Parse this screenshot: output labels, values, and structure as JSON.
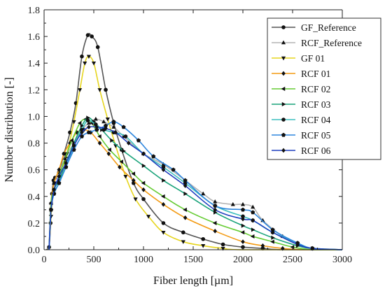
{
  "chart_data": {
    "type": "line",
    "xlabel": "Fiber length  [µm]",
    "ylabel": "Number distribution [-]",
    "xlim": [
      0,
      3000
    ],
    "ylim": [
      0,
      1.8
    ],
    "xticks": [
      "0",
      "500",
      "1000",
      "1500",
      "2000",
      "2500",
      "3000"
    ],
    "yticks": [
      "0.0",
      "0.2",
      "0.4",
      "0.6",
      "0.8",
      "1.0",
      "1.2",
      "1.4",
      "1.6",
      "1.8"
    ],
    "grid": false,
    "legend_position": "top-right",
    "series": [
      {
        "name": "GF_Reference",
        "color": "#555555",
        "marker": "circle",
        "points": [
          [
            20,
            0.0
          ],
          [
            50,
            0.02
          ],
          [
            65,
            0.2
          ],
          [
            80,
            0.42
          ],
          [
            95,
            0.52
          ],
          [
            110,
            0.54
          ],
          [
            150,
            0.58
          ],
          [
            200,
            0.72
          ],
          [
            260,
            0.88
          ],
          [
            320,
            1.1
          ],
          [
            380,
            1.45
          ],
          [
            440,
            1.61
          ],
          [
            480,
            1.6
          ],
          [
            540,
            1.52
          ],
          [
            620,
            1.2
          ],
          [
            700,
            0.95
          ],
          [
            780,
            0.75
          ],
          [
            900,
            0.5
          ],
          [
            1000,
            0.38
          ],
          [
            1200,
            0.2
          ],
          [
            1400,
            0.13
          ],
          [
            1600,
            0.08
          ],
          [
            1800,
            0.04
          ],
          [
            2000,
            0.02
          ],
          [
            2200,
            0.01
          ],
          [
            2400,
            0.0
          ],
          [
            3000,
            0.0
          ]
        ]
      },
      {
        "name": "RCF_Reference",
        "color": "#b3b3b3",
        "marker": "triangle-up",
        "points": [
          [
            50,
            0.0
          ],
          [
            70,
            0.35
          ],
          [
            100,
            0.5
          ],
          [
            150,
            0.58
          ],
          [
            220,
            0.7
          ],
          [
            300,
            0.8
          ],
          [
            380,
            0.9
          ],
          [
            450,
            0.95
          ],
          [
            520,
            0.98
          ],
          [
            600,
            0.96
          ],
          [
            700,
            0.92
          ],
          [
            800,
            0.85
          ],
          [
            1000,
            0.72
          ],
          [
            1200,
            0.64
          ],
          [
            1420,
            0.52
          ],
          [
            1600,
            0.42
          ],
          [
            1720,
            0.36
          ],
          [
            1900,
            0.34
          ],
          [
            2000,
            0.34
          ],
          [
            2100,
            0.32
          ],
          [
            2200,
            0.22
          ],
          [
            2400,
            0.1
          ],
          [
            2550,
            0.04
          ],
          [
            2700,
            0.01
          ],
          [
            3000,
            0.0
          ]
        ]
      },
      {
        "name": "GF 01",
        "color": "#e6d51e",
        "marker": "triangle-down",
        "points": [
          [
            50,
            0.0
          ],
          [
            70,
            0.25
          ],
          [
            90,
            0.42
          ],
          [
            120,
            0.5
          ],
          [
            170,
            0.55
          ],
          [
            230,
            0.72
          ],
          [
            300,
            0.96
          ],
          [
            360,
            1.2
          ],
          [
            410,
            1.4
          ],
          [
            450,
            1.45
          ],
          [
            500,
            1.4
          ],
          [
            560,
            1.2
          ],
          [
            640,
            0.98
          ],
          [
            720,
            0.78
          ],
          [
            820,
            0.55
          ],
          [
            920,
            0.38
          ],
          [
            1050,
            0.25
          ],
          [
            1200,
            0.13
          ],
          [
            1400,
            0.06
          ],
          [
            1600,
            0.03
          ],
          [
            1800,
            0.01
          ],
          [
            2000,
            0.0
          ],
          [
            3000,
            0.0
          ]
        ]
      },
      {
        "name": "RCF 01",
        "color": "#f39b14",
        "marker": "diamond",
        "points": [
          [
            50,
            0.0
          ],
          [
            70,
            0.35
          ],
          [
            100,
            0.5
          ],
          [
            150,
            0.6
          ],
          [
            200,
            0.72
          ],
          [
            260,
            0.8
          ],
          [
            330,
            0.88
          ],
          [
            400,
            0.9
          ],
          [
            470,
            0.88
          ],
          [
            560,
            0.8
          ],
          [
            650,
            0.72
          ],
          [
            760,
            0.62
          ],
          [
            900,
            0.52
          ],
          [
            1000,
            0.45
          ],
          [
            1200,
            0.34
          ],
          [
            1420,
            0.24
          ],
          [
            1720,
            0.14
          ],
          [
            2000,
            0.06
          ],
          [
            2200,
            0.03
          ],
          [
            2400,
            0.01
          ],
          [
            2600,
            0.0
          ],
          [
            3000,
            0.0
          ]
        ]
      },
      {
        "name": "RCF 02",
        "color": "#66cc33",
        "marker": "triangle-left",
        "points": [
          [
            50,
            0.0
          ],
          [
            70,
            0.35
          ],
          [
            100,
            0.45
          ],
          [
            150,
            0.55
          ],
          [
            210,
            0.68
          ],
          [
            280,
            0.82
          ],
          [
            360,
            0.95
          ],
          [
            420,
            0.98
          ],
          [
            480,
            0.95
          ],
          [
            560,
            0.85
          ],
          [
            660,
            0.75
          ],
          [
            780,
            0.66
          ],
          [
            900,
            0.57
          ],
          [
            1000,
            0.5
          ],
          [
            1200,
            0.4
          ],
          [
            1420,
            0.3
          ],
          [
            1720,
            0.2
          ],
          [
            2000,
            0.13
          ],
          [
            2100,
            0.1
          ],
          [
            2300,
            0.06
          ],
          [
            2500,
            0.02
          ],
          [
            2700,
            0.0
          ],
          [
            3000,
            0.0
          ]
        ]
      },
      {
        "name": "RCF 03",
        "color": "#1aa37a",
        "marker": "triangle-right",
        "points": [
          [
            50,
            0.0
          ],
          [
            70,
            0.3
          ],
          [
            100,
            0.45
          ],
          [
            150,
            0.52
          ],
          [
            220,
            0.65
          ],
          [
            300,
            0.8
          ],
          [
            380,
            0.93
          ],
          [
            440,
            0.99
          ],
          [
            500,
            0.96
          ],
          [
            580,
            0.9
          ],
          [
            680,
            0.82
          ],
          [
            800,
            0.74
          ],
          [
            1000,
            0.63
          ],
          [
            1200,
            0.52
          ],
          [
            1420,
            0.42
          ],
          [
            1720,
            0.28
          ],
          [
            2000,
            0.18
          ],
          [
            2100,
            0.15
          ],
          [
            2300,
            0.09
          ],
          [
            2550,
            0.03
          ],
          [
            2700,
            0.01
          ],
          [
            3000,
            0.0
          ]
        ]
      },
      {
        "name": "RCF 04",
        "color": "#3dbfbf",
        "marker": "circle",
        "points": [
          [
            50,
            0.0
          ],
          [
            70,
            0.3
          ],
          [
            100,
            0.42
          ],
          [
            150,
            0.5
          ],
          [
            220,
            0.62
          ],
          [
            300,
            0.78
          ],
          [
            380,
            0.9
          ],
          [
            440,
            0.97
          ],
          [
            520,
            0.94
          ],
          [
            600,
            0.9
          ],
          [
            700,
            0.88
          ],
          [
            820,
            0.85
          ],
          [
            1000,
            0.72
          ],
          [
            1200,
            0.62
          ],
          [
            1420,
            0.5
          ],
          [
            1720,
            0.33
          ],
          [
            2000,
            0.25
          ],
          [
            2100,
            0.22
          ],
          [
            2300,
            0.13
          ],
          [
            2550,
            0.05
          ],
          [
            2700,
            0.01
          ],
          [
            3000,
            0.0
          ]
        ]
      },
      {
        "name": "RCF 05",
        "color": "#2e86de",
        "marker": "pentagon",
        "points": [
          [
            50,
            0.0
          ],
          [
            70,
            0.3
          ],
          [
            100,
            0.42
          ],
          [
            150,
            0.5
          ],
          [
            220,
            0.62
          ],
          [
            300,
            0.75
          ],
          [
            380,
            0.85
          ],
          [
            450,
            0.88
          ],
          [
            530,
            0.9
          ],
          [
            620,
            0.93
          ],
          [
            700,
            0.96
          ],
          [
            800,
            0.92
          ],
          [
            950,
            0.82
          ],
          [
            1100,
            0.7
          ],
          [
            1300,
            0.6
          ],
          [
            1420,
            0.52
          ],
          [
            1720,
            0.33
          ],
          [
            2000,
            0.3
          ],
          [
            2100,
            0.28
          ],
          [
            2300,
            0.15
          ],
          [
            2550,
            0.05
          ],
          [
            2700,
            0.01
          ],
          [
            3000,
            0.0
          ]
        ]
      },
      {
        "name": "RCF 06",
        "color": "#1f3fbf",
        "marker": "diamond",
        "points": [
          [
            50,
            0.0
          ],
          [
            70,
            0.3
          ],
          [
            100,
            0.45
          ],
          [
            150,
            0.55
          ],
          [
            220,
            0.65
          ],
          [
            300,
            0.78
          ],
          [
            380,
            0.88
          ],
          [
            450,
            0.92
          ],
          [
            530,
            0.92
          ],
          [
            620,
            0.91
          ],
          [
            720,
            0.88
          ],
          [
            850,
            0.8
          ],
          [
            1000,
            0.72
          ],
          [
            1200,
            0.6
          ],
          [
            1420,
            0.48
          ],
          [
            1720,
            0.3
          ],
          [
            2000,
            0.23
          ],
          [
            2100,
            0.22
          ],
          [
            2300,
            0.13
          ],
          [
            2550,
            0.04
          ],
          [
            2700,
            0.01
          ],
          [
            3000,
            0.0
          ]
        ]
      }
    ]
  }
}
